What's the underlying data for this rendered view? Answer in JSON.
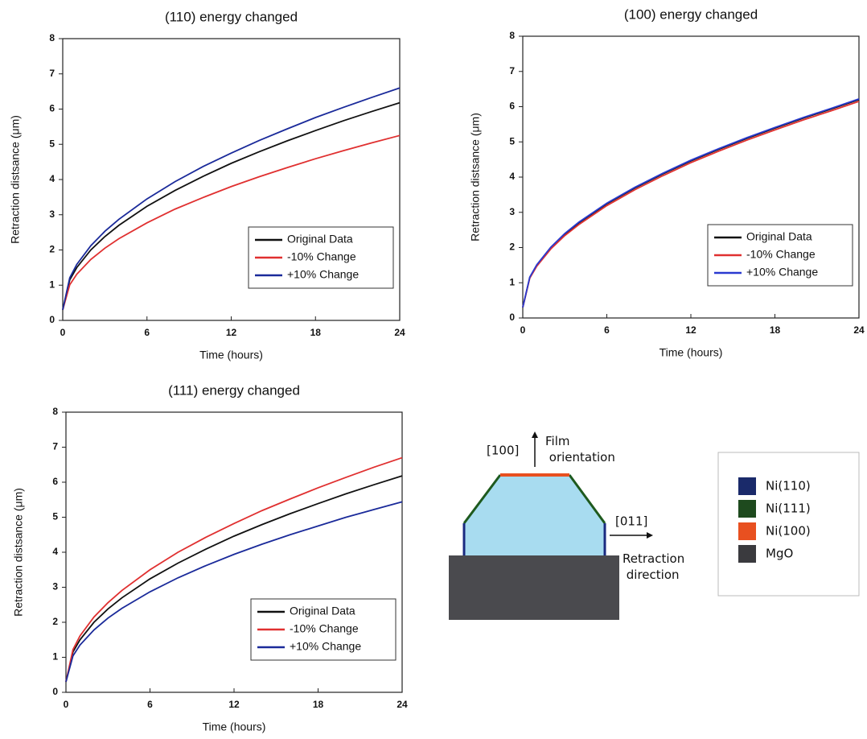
{
  "chart_data": [
    {
      "type": "line",
      "title": "(110) energy changed",
      "xlabel": "Time (hours)",
      "ylabel": "Retraction distsance (μm)",
      "x": [
        0,
        0.5,
        1,
        2,
        3,
        4,
        6,
        8,
        10,
        12,
        14,
        16,
        18,
        20,
        22,
        24
      ],
      "series": [
        {
          "name": "Original Data",
          "color": "#111111",
          "values": [
            0.3,
            1.15,
            1.5,
            2.0,
            2.38,
            2.7,
            3.24,
            3.69,
            4.09,
            4.46,
            4.79,
            5.1,
            5.39,
            5.67,
            5.93,
            6.18
          ]
        },
        {
          "name": "-10% Change",
          "color": "#e03030",
          "values": [
            0.3,
            1.01,
            1.31,
            1.73,
            2.05,
            2.32,
            2.77,
            3.16,
            3.49,
            3.8,
            4.08,
            4.34,
            4.59,
            4.82,
            5.04,
            5.25
          ]
        },
        {
          "name": "+10% Change",
          "color": "#1a2a9a",
          "values": [
            0.3,
            1.21,
            1.59,
            2.12,
            2.53,
            2.87,
            3.45,
            3.94,
            4.37,
            4.75,
            5.11,
            5.44,
            5.76,
            6.05,
            6.33,
            6.6
          ]
        }
      ],
      "xlim": [
        0,
        24
      ],
      "ylim": [
        0,
        8
      ],
      "xticks": [
        0,
        6,
        12,
        18,
        24
      ],
      "yticks": [
        0,
        1,
        2,
        3,
        4,
        5,
        6,
        7,
        8
      ],
      "legend": "lower right"
    },
    {
      "type": "line",
      "title": "(100) energy changed",
      "xlabel": "Time (hours)",
      "ylabel": "Retraction distsance (μm)",
      "x": [
        0,
        0.5,
        1,
        2,
        3,
        4,
        6,
        8,
        10,
        12,
        14,
        16,
        18,
        20,
        22,
        24
      ],
      "series": [
        {
          "name": "Original Data",
          "color": "#111111",
          "values": [
            0.3,
            1.15,
            1.5,
            2.0,
            2.38,
            2.7,
            3.24,
            3.69,
            4.09,
            4.46,
            4.79,
            5.1,
            5.39,
            5.67,
            5.93,
            6.2
          ]
        },
        {
          "name": "-10% Change",
          "color": "#e03030",
          "values": [
            0.3,
            1.13,
            1.47,
            1.96,
            2.34,
            2.65,
            3.19,
            3.64,
            4.04,
            4.41,
            4.74,
            5.05,
            5.34,
            5.62,
            5.88,
            6.15
          ]
        },
        {
          "name": "+10% Change",
          "color": "#2a3ad0",
          "values": [
            0.3,
            1.16,
            1.51,
            2.01,
            2.4,
            2.72,
            3.26,
            3.71,
            4.11,
            4.48,
            4.81,
            5.12,
            5.41,
            5.69,
            5.95,
            6.22
          ]
        }
      ],
      "xlim": [
        0,
        24
      ],
      "ylim": [
        0,
        8
      ],
      "xticks": [
        0,
        6,
        12,
        18,
        24
      ],
      "yticks": [
        0,
        1,
        2,
        3,
        4,
        5,
        6,
        7,
        8
      ],
      "legend": "lower right"
    },
    {
      "type": "line",
      "title": "(111) energy changed",
      "xlabel": "Time (hours)",
      "ylabel": "Retraction distsance (μm)",
      "x": [
        0,
        0.5,
        1,
        2,
        3,
        4,
        6,
        8,
        10,
        12,
        14,
        16,
        18,
        20,
        22,
        24
      ],
      "series": [
        {
          "name": "Original Data",
          "color": "#111111",
          "values": [
            0.3,
            1.15,
            1.5,
            2.0,
            2.38,
            2.7,
            3.24,
            3.69,
            4.09,
            4.46,
            4.79,
            5.1,
            5.39,
            5.67,
            5.93,
            6.18
          ]
        },
        {
          "name": "-10% Change",
          "color": "#e03030",
          "values": [
            0.3,
            1.22,
            1.61,
            2.15,
            2.56,
            2.91,
            3.5,
            4.0,
            4.43,
            4.82,
            5.19,
            5.52,
            5.84,
            6.14,
            6.43,
            6.7
          ]
        },
        {
          "name": "+10% Change",
          "color": "#1a2a9a",
          "values": [
            0.3,
            1.04,
            1.35,
            1.78,
            2.12,
            2.4,
            2.87,
            3.27,
            3.62,
            3.94,
            4.23,
            4.5,
            4.75,
            5.0,
            5.22,
            5.44
          ]
        }
      ],
      "xlim": [
        0,
        24
      ],
      "ylim": [
        0,
        8
      ],
      "xticks": [
        0,
        6,
        12,
        18,
        24
      ],
      "yticks": [
        0,
        1,
        2,
        3,
        4,
        5,
        6,
        7,
        8
      ],
      "legend": "lower right"
    }
  ],
  "diagram": {
    "film_label": "[100]",
    "film_text": "Film orientation",
    "retraction_label": "[011]",
    "retraction_text": "Retraction direction",
    "legend": [
      "Ni(110)",
      "Ni(111)",
      "Ni(100)",
      "MgO"
    ]
  }
}
